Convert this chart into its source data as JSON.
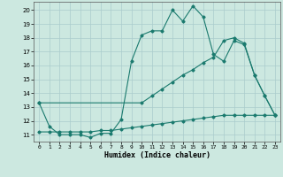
{
  "background_color": "#cce8e0",
  "grid_color": "#aacccc",
  "line_color": "#1a7a6e",
  "x_label": "Humidex (Indice chaleur)",
  "ylim": [
    10.5,
    20.6
  ],
  "xlim": [
    -0.5,
    23.5
  ],
  "yticks": [
    11,
    12,
    13,
    14,
    15,
    16,
    17,
    18,
    19,
    20
  ],
  "xticks": [
    0,
    1,
    2,
    3,
    4,
    5,
    6,
    7,
    8,
    9,
    10,
    11,
    12,
    13,
    14,
    15,
    16,
    17,
    18,
    19,
    20,
    21,
    22,
    23
  ],
  "line1_x": [
    0,
    1,
    2,
    3,
    4,
    5,
    6,
    7,
    8,
    9,
    10,
    11,
    12,
    13,
    14,
    15,
    16,
    17,
    18,
    19,
    20,
    21,
    22,
    23
  ],
  "line1_y": [
    13.3,
    11.6,
    11.0,
    11.0,
    11.0,
    10.8,
    11.1,
    11.1,
    12.1,
    16.3,
    18.2,
    18.5,
    18.5,
    20.0,
    19.2,
    20.3,
    19.5,
    16.8,
    16.3,
    17.8,
    17.5,
    15.3,
    13.8,
    12.4
  ],
  "line2_x": [
    0,
    1,
    2,
    3,
    4,
    5,
    6,
    7,
    8,
    9,
    10,
    11,
    12,
    13,
    14,
    15,
    16,
    17,
    18,
    19,
    20,
    21,
    22,
    23
  ],
  "line2_y": [
    11.2,
    11.2,
    11.2,
    11.2,
    11.2,
    11.2,
    11.3,
    11.3,
    11.4,
    11.5,
    11.6,
    11.7,
    11.8,
    11.9,
    12.0,
    12.1,
    12.2,
    12.3,
    12.4,
    12.4,
    12.4,
    12.4,
    12.4,
    12.4
  ],
  "line3_x": [
    0,
    10,
    11,
    12,
    13,
    14,
    15,
    16,
    17,
    18,
    19,
    20,
    21,
    22,
    23
  ],
  "line3_y": [
    13.3,
    13.3,
    13.8,
    14.3,
    14.8,
    15.3,
    15.7,
    16.2,
    16.6,
    17.8,
    18.0,
    17.6,
    15.3,
    13.8,
    12.4
  ]
}
